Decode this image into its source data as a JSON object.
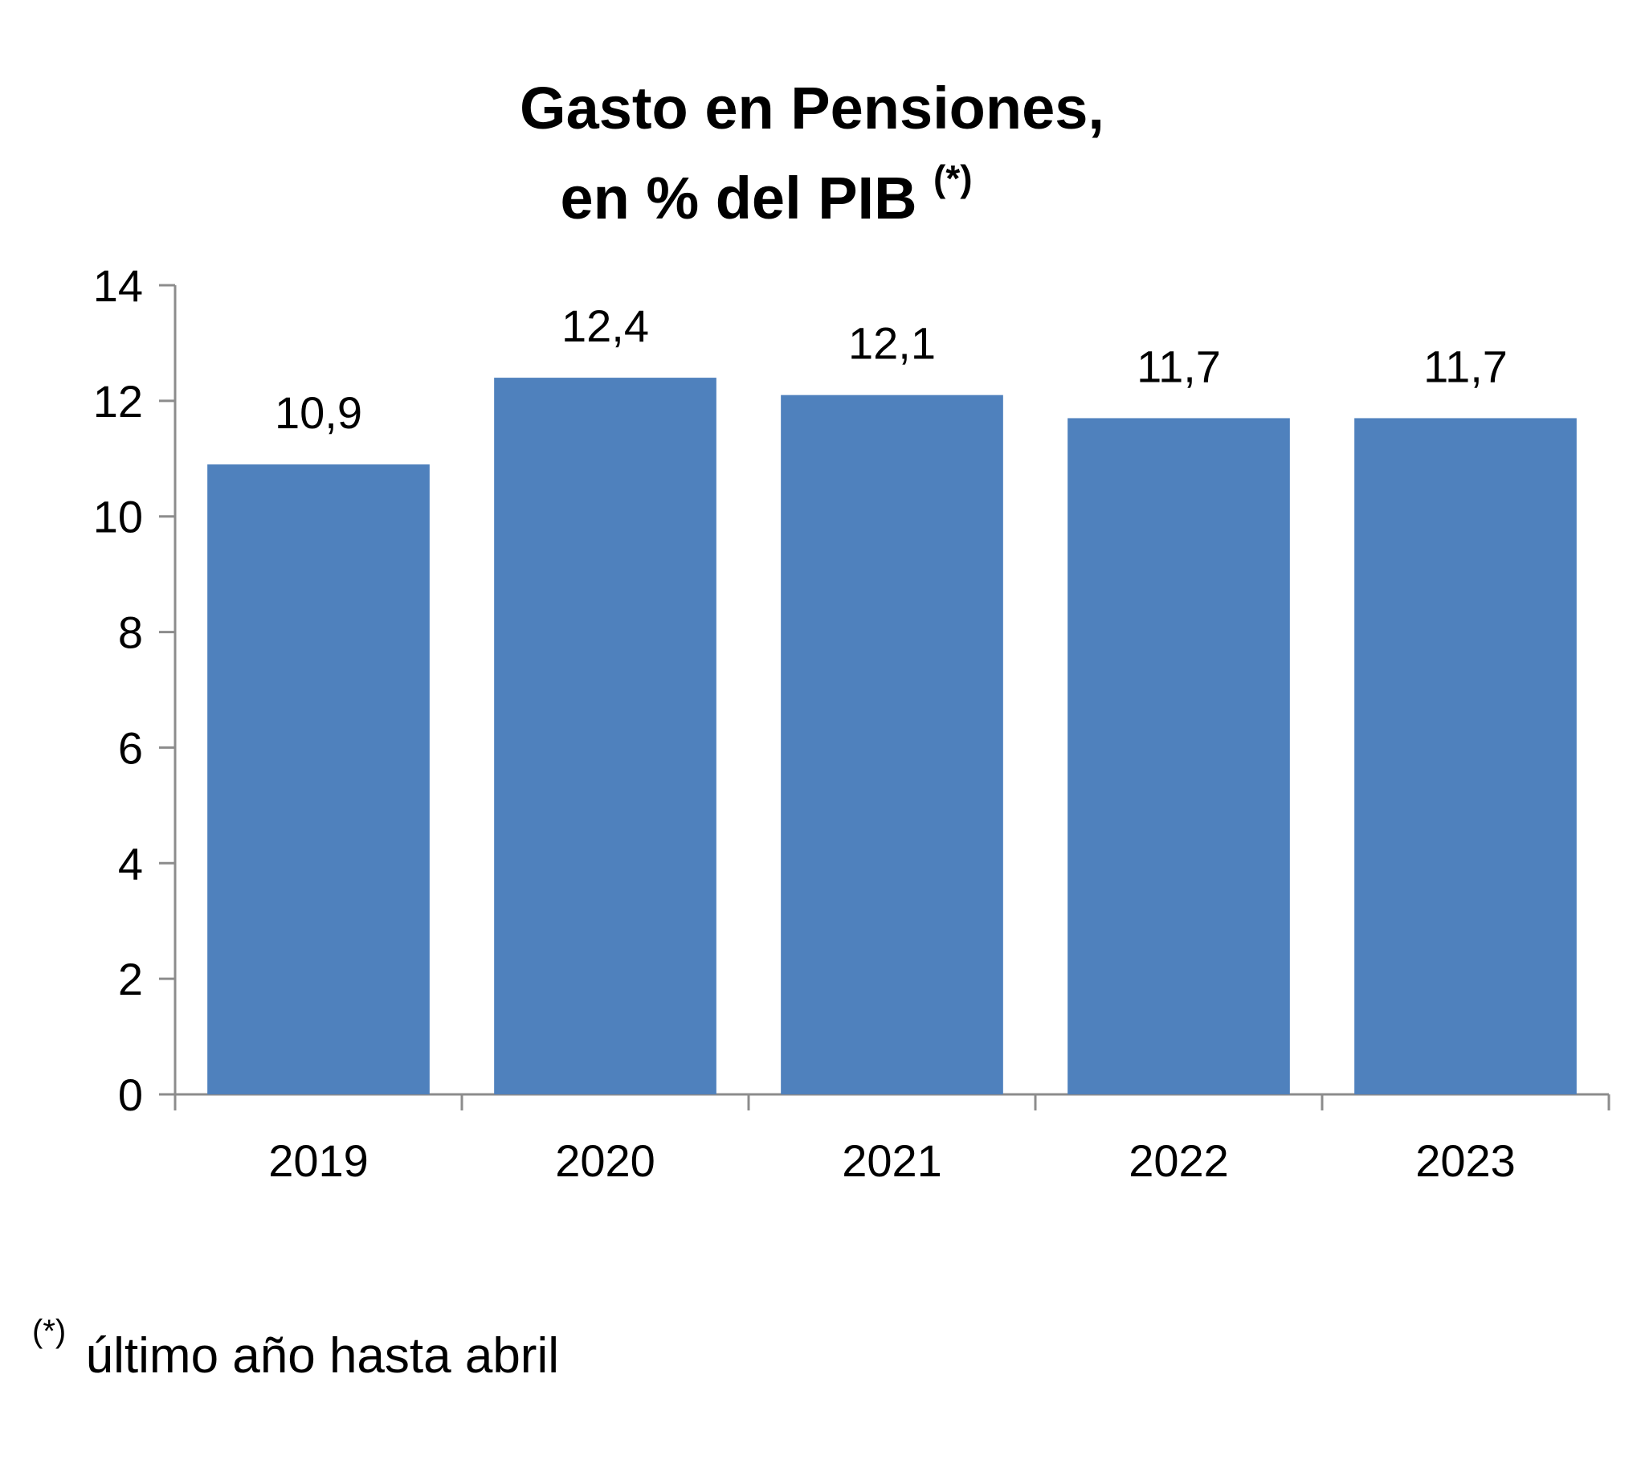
{
  "chart_data": {
    "type": "bar",
    "title": "Gasto en Pensiones,",
    "subtitle": "en % del PIB",
    "title_marker": "(*)",
    "categories": [
      "2019",
      "2020",
      "2021",
      "2022",
      "2023"
    ],
    "values": [
      10.9,
      12.4,
      12.1,
      11.7,
      11.7
    ],
    "value_labels": [
      "10,9",
      "12,4",
      "12,1",
      "11,7",
      "11,7"
    ],
    "y_ticks": [
      "0",
      "2",
      "4",
      "6",
      "8",
      "10",
      "12",
      "14"
    ],
    "ylim": [
      0,
      14
    ],
    "xlabel": "",
    "ylabel": "",
    "grid": false,
    "legend": "none",
    "bar_color": "#4F81BD",
    "axis_color": "#8C8C8C"
  },
  "footnote": {
    "marker": "(*)",
    "text": "último año hasta abril"
  }
}
